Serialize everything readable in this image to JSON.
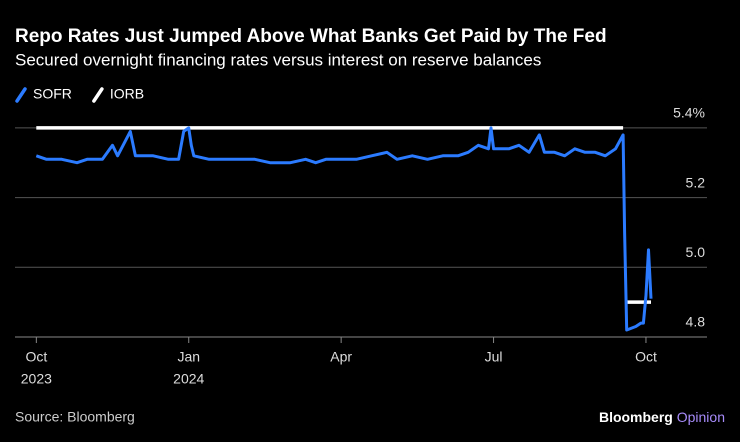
{
  "chart_data": {
    "type": "line",
    "title": "Repo Rates Just Jumped Above What Banks Get Paid by The Fed",
    "subtitle": "Secured overnight financing rates versus interest on reserve balances",
    "x": [
      0.0,
      0.2,
      0.5,
      0.8,
      1.0,
      1.3,
      1.5,
      1.6,
      1.85,
      1.95,
      2.1,
      2.3,
      2.6,
      2.8,
      2.9,
      3.0,
      3.05,
      3.1,
      3.4,
      3.7,
      4.0,
      4.3,
      4.6,
      5.0,
      5.3,
      5.5,
      5.7,
      6.0,
      6.3,
      6.6,
      6.9,
      7.1,
      7.4,
      7.7,
      8.0,
      8.3,
      8.5,
      8.7,
      8.9,
      8.95,
      9.0,
      9.3,
      9.5,
      9.7,
      9.9,
      10.0,
      10.2,
      10.4,
      10.6,
      10.8,
      11.0,
      11.2,
      11.4,
      11.55,
      11.58,
      11.62,
      11.8,
      11.9,
      11.95,
      12.0,
      12.05,
      12.1
    ],
    "series": [
      {
        "name": "SOFR",
        "color": "#2b7bff",
        "values": [
          5.32,
          5.31,
          5.31,
          5.3,
          5.31,
          5.31,
          5.35,
          5.32,
          5.39,
          5.32,
          5.32,
          5.32,
          5.31,
          5.31,
          5.39,
          5.4,
          5.35,
          5.32,
          5.31,
          5.31,
          5.31,
          5.31,
          5.3,
          5.3,
          5.31,
          5.3,
          5.31,
          5.31,
          5.31,
          5.32,
          5.33,
          5.31,
          5.32,
          5.31,
          5.32,
          5.32,
          5.33,
          5.35,
          5.34,
          5.4,
          5.34,
          5.34,
          5.35,
          5.33,
          5.38,
          5.33,
          5.33,
          5.32,
          5.34,
          5.33,
          5.33,
          5.32,
          5.34,
          5.38,
          5.1,
          4.82,
          4.83,
          4.84,
          4.84,
          4.92,
          5.05,
          4.91
        ]
      },
      {
        "name": "IORB",
        "color": "#ffffff",
        "values": [
          5.4,
          5.4,
          5.4,
          5.4,
          5.4,
          5.4,
          5.4,
          5.4,
          5.4,
          5.4,
          5.4,
          5.4,
          5.4,
          5.4,
          5.4,
          5.4,
          5.4,
          5.4,
          5.4,
          5.4,
          5.4,
          5.4,
          5.4,
          5.4,
          5.4,
          5.4,
          5.4,
          5.4,
          5.4,
          5.4,
          5.4,
          5.4,
          5.4,
          5.4,
          5.4,
          5.4,
          5.4,
          5.4,
          5.4,
          5.4,
          5.4,
          5.4,
          5.4,
          5.4,
          5.4,
          5.4,
          5.4,
          5.4,
          5.4,
          5.4,
          5.4,
          5.4,
          5.4,
          5.4,
          null,
          4.9,
          4.9,
          4.9,
          4.9,
          4.9,
          4.9,
          4.9
        ]
      }
    ],
    "xlim": [
      -0.42,
      13.3
    ],
    "xticks": [
      {
        "value": 0,
        "label": "Oct",
        "sublabel": "2023"
      },
      {
        "value": 3,
        "label": "Jan",
        "sublabel": "2024"
      },
      {
        "value": 6,
        "label": "Apr"
      },
      {
        "value": 9,
        "label": "Jul"
      },
      {
        "value": 12,
        "label": "Oct"
      }
    ],
    "ylim": [
      4.8,
      5.48
    ],
    "yticks": [
      {
        "value": 4.8,
        "label": "4.8"
      },
      {
        "value": 5,
        "label": "5.0"
      },
      5.2,
      {
        "value": 5.4,
        "label": "5.4%"
      }
    ],
    "grid": true,
    "source": "Source: Bloomberg",
    "brand": "Bloomberg",
    "brand_suffix": "Opinion"
  }
}
